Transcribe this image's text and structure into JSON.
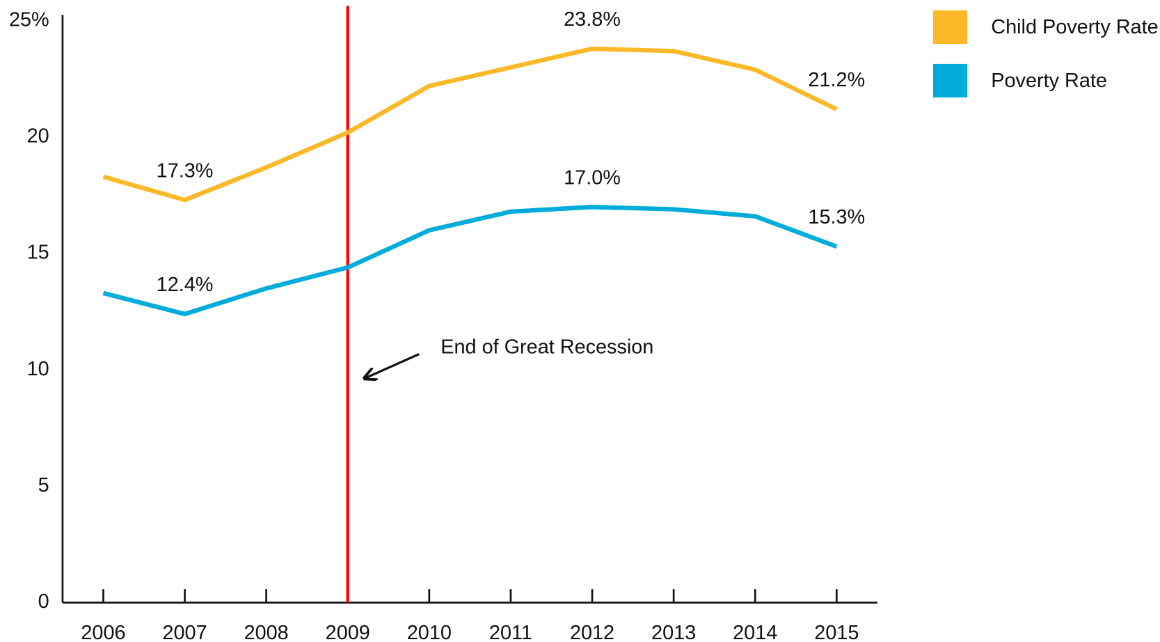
{
  "chart_data": {
    "type": "line",
    "x": [
      2006,
      2007,
      2008,
      2009,
      2010,
      2011,
      2012,
      2013,
      2014,
      2015
    ],
    "xlim": [
      2005.5,
      2015.5
    ],
    "xticks": [
      2006,
      2007,
      2008,
      2009,
      2010,
      2011,
      2012,
      2013,
      2014,
      2015
    ],
    "ylim": [
      0,
      25
    ],
    "yticks": [
      0,
      5,
      10,
      15,
      20,
      {
        "value": 25,
        "label": "25%"
      }
    ],
    "series": [
      {
        "name": "Child Poverty Rate",
        "color": "#fbb829",
        "values": [
          18.3,
          17.3,
          18.7,
          20.2,
          22.2,
          23.0,
          23.8,
          23.7,
          22.9,
          21.2
        ],
        "value_labels": [
          null,
          "17.3%",
          null,
          null,
          null,
          null,
          "23.8%",
          null,
          null,
          "21.2%"
        ]
      },
      {
        "name": "Poverty Rate",
        "color": "#00acd9",
        "values": [
          13.3,
          12.4,
          13.5,
          14.4,
          16.0,
          16.8,
          17.0,
          16.9,
          16.6,
          15.3
        ],
        "value_labels": [
          null,
          "12.4%",
          null,
          null,
          null,
          null,
          "17.0%",
          null,
          null,
          "15.3%"
        ]
      }
    ],
    "annotation": {
      "text": "End of Great Recession",
      "x": 2009,
      "color": "#ff0000"
    },
    "legend": "upper right"
  }
}
